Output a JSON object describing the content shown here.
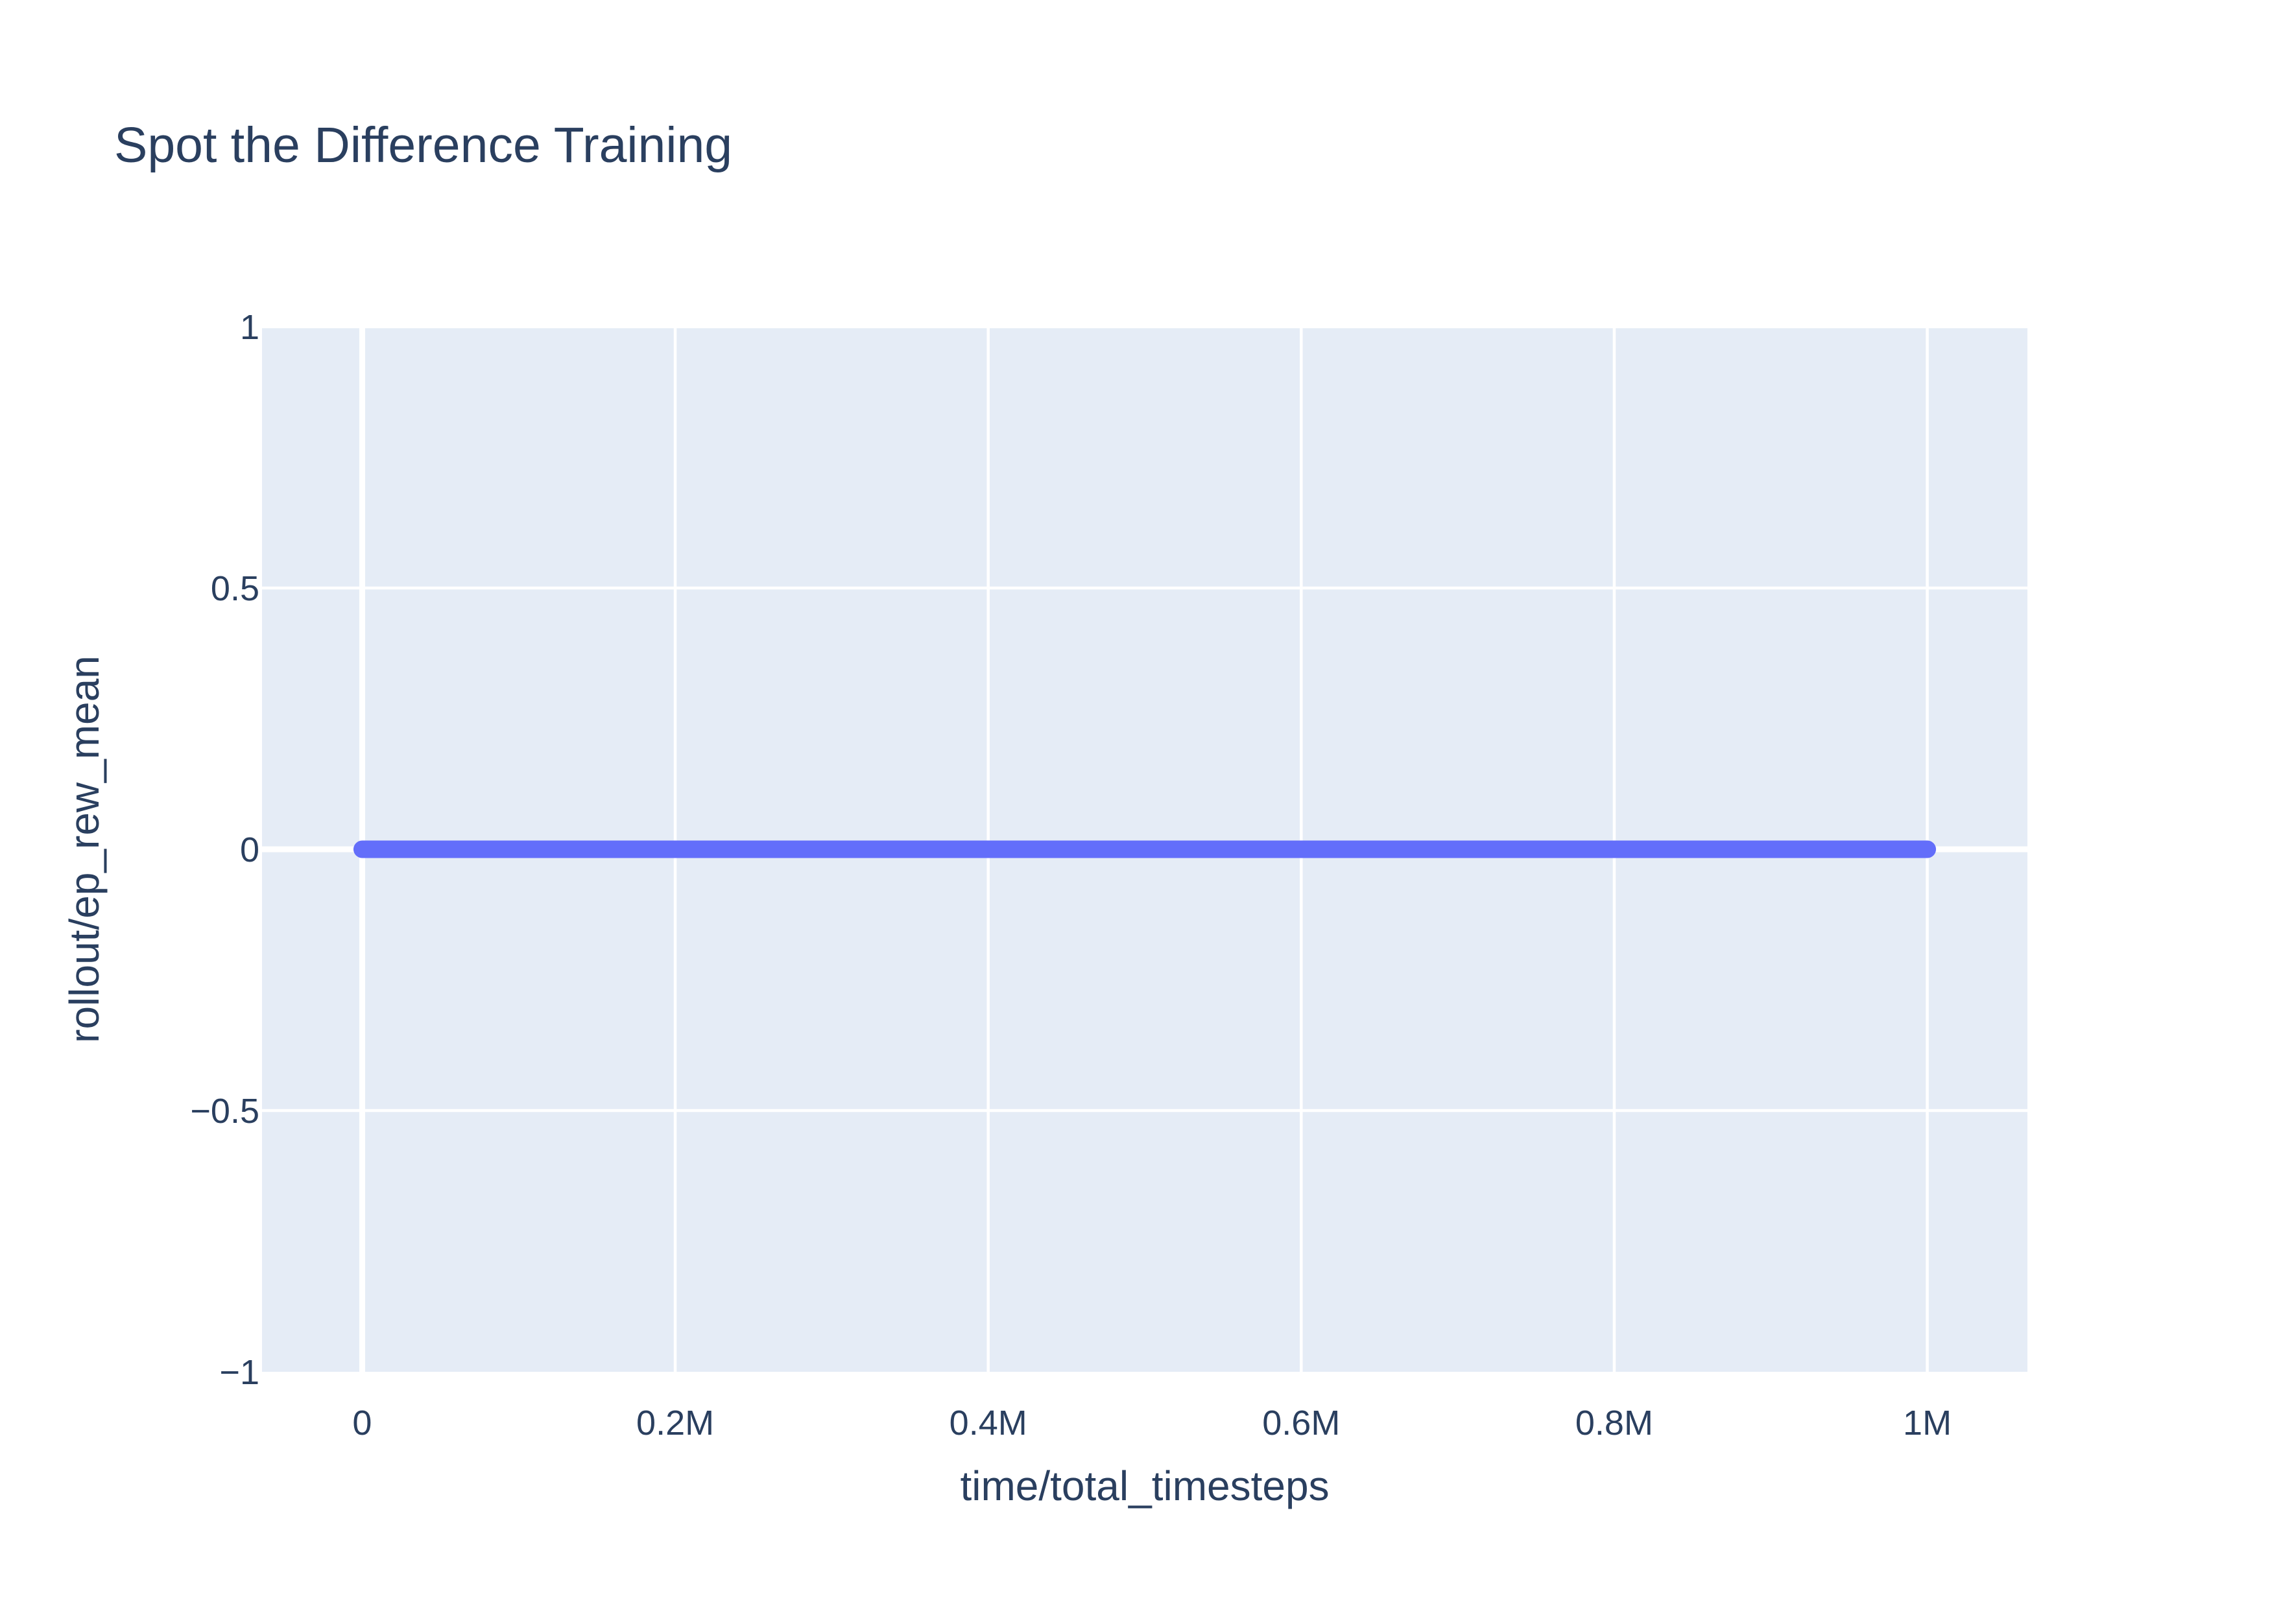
{
  "chart_data": {
    "type": "line",
    "title": "Spot the Difference Training",
    "xlabel": "time/total_timesteps",
    "ylabel": "rollout/ep_rew_mean",
    "xlim": [
      -64000,
      1064000
    ],
    "ylim": [
      -1,
      1
    ],
    "x_ticks": [
      {
        "value": 0,
        "label": "0"
      },
      {
        "value": 200000,
        "label": "0.2M"
      },
      {
        "value": 400000,
        "label": "0.4M"
      },
      {
        "value": 600000,
        "label": "0.6M"
      },
      {
        "value": 800000,
        "label": "0.8M"
      },
      {
        "value": 1000000,
        "label": "1M"
      }
    ],
    "y_ticks": [
      {
        "value": -1,
        "label": "−1"
      },
      {
        "value": -0.5,
        "label": "−0.5"
      },
      {
        "value": 0,
        "label": "0"
      },
      {
        "value": 0.5,
        "label": "0.5"
      },
      {
        "value": 1,
        "label": "1"
      }
    ],
    "grid": true,
    "legend": false,
    "colors": {
      "plot_bg": "#e5ecf6",
      "grid": "#ffffff",
      "line": "#636efa",
      "text": "#2a3f5f"
    },
    "series": [
      {
        "x": [
          0,
          100000,
          200000,
          300000,
          400000,
          500000,
          600000,
          700000,
          800000,
          900000,
          1000000
        ],
        "y": [
          0,
          0,
          0,
          0,
          0,
          0,
          0,
          0,
          0,
          0,
          0
        ]
      }
    ]
  }
}
